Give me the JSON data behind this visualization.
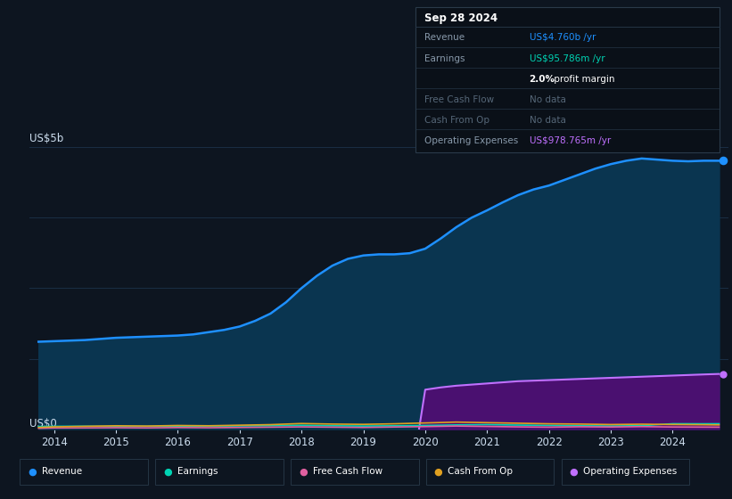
{
  "bg_color": "#0d1520",
  "plot_bg_color": "#0d1520",
  "grid_color": "#1a2e45",
  "tooltip_bg": "#0a1018",
  "tooltip_border": "#2a3a4a",
  "title_box": {
    "date": "Sep 28 2024",
    "rows": [
      {
        "label": "Revenue",
        "value": "US$4.760b /yr",
        "value_color": "#1e90ff",
        "label_color": "#8899aa"
      },
      {
        "label": "Earnings",
        "value": "US$95.786m /yr",
        "value_color": "#00d4b4",
        "label_color": "#8899aa"
      },
      {
        "label": "",
        "value_bold": "2.0%",
        "value_rest": " profit margin",
        "value_color": "#ffffff",
        "label_color": "#8899aa"
      },
      {
        "label": "Free Cash Flow",
        "value": "No data",
        "value_color": "#556677",
        "label_color": "#556677"
      },
      {
        "label": "Cash From Op",
        "value": "No data",
        "value_color": "#556677",
        "label_color": "#556677"
      },
      {
        "label": "Operating Expenses",
        "value": "US$978.765m /yr",
        "value_color": "#c070ff",
        "label_color": "#8899aa"
      }
    ]
  },
  "ylabel_top": "US$5b",
  "ylabel_bottom": "US$0",
  "x_years": [
    2014,
    2015,
    2016,
    2017,
    2018,
    2019,
    2020,
    2021,
    2022,
    2023,
    2024
  ],
  "revenue_x": [
    2013.75,
    2014.0,
    2014.25,
    2014.5,
    2014.75,
    2015.0,
    2015.25,
    2015.5,
    2015.75,
    2016.0,
    2016.25,
    2016.5,
    2016.75,
    2017.0,
    2017.25,
    2017.5,
    2017.75,
    2018.0,
    2018.25,
    2018.5,
    2018.75,
    2019.0,
    2019.25,
    2019.5,
    2019.75,
    2020.0,
    2020.25,
    2020.5,
    2020.75,
    2021.0,
    2021.25,
    2021.5,
    2021.75,
    2022.0,
    2022.25,
    2022.5,
    2022.75,
    2023.0,
    2023.25,
    2023.5,
    2023.75,
    2024.0,
    2024.25,
    2024.5,
    2024.75
  ],
  "revenue_y": [
    1.55,
    1.56,
    1.57,
    1.58,
    1.6,
    1.62,
    1.63,
    1.64,
    1.65,
    1.66,
    1.68,
    1.72,
    1.76,
    1.82,
    1.92,
    2.05,
    2.25,
    2.5,
    2.72,
    2.9,
    3.02,
    3.08,
    3.1,
    3.1,
    3.12,
    3.2,
    3.38,
    3.58,
    3.75,
    3.88,
    4.02,
    4.15,
    4.25,
    4.32,
    4.42,
    4.52,
    4.62,
    4.7,
    4.76,
    4.8,
    4.78,
    4.76,
    4.75,
    4.76,
    4.76
  ],
  "revenue_color": "#1e90ff",
  "revenue_fill": "#0a3550",
  "opex_x": [
    2019.9,
    2020.0,
    2020.25,
    2020.5,
    2020.75,
    2021.0,
    2021.25,
    2021.5,
    2021.75,
    2022.0,
    2022.25,
    2022.5,
    2022.75,
    2023.0,
    2023.25,
    2023.5,
    2023.75,
    2024.0,
    2024.25,
    2024.5,
    2024.75
  ],
  "opex_y": [
    0.0,
    0.7,
    0.74,
    0.77,
    0.79,
    0.81,
    0.83,
    0.85,
    0.86,
    0.87,
    0.88,
    0.89,
    0.9,
    0.91,
    0.92,
    0.93,
    0.94,
    0.95,
    0.96,
    0.97,
    0.979
  ],
  "opex_color": "#c070ff",
  "opex_fill": "#4a1070",
  "earnings_x": [
    2013.75,
    2014.0,
    2014.5,
    2015.0,
    2015.5,
    2016.0,
    2016.5,
    2017.0,
    2017.5,
    2018.0,
    2018.5,
    2019.0,
    2019.5,
    2020.0,
    2020.5,
    2021.0,
    2021.5,
    2022.0,
    2022.5,
    2023.0,
    2023.5,
    2024.0,
    2024.5,
    2024.75
  ],
  "earnings_y": [
    0.045,
    0.05,
    0.052,
    0.048,
    0.05,
    0.052,
    0.055,
    0.058,
    0.062,
    0.068,
    0.06,
    0.055,
    0.06,
    0.065,
    0.075,
    0.08,
    0.072,
    0.065,
    0.06,
    0.055,
    0.062,
    0.096,
    0.095,
    0.096
  ],
  "earnings_color": "#00d4b4",
  "fcf_x": [
    2013.75,
    2014.0,
    2014.5,
    2015.0,
    2015.5,
    2016.0,
    2016.5,
    2017.0,
    2017.5,
    2018.0,
    2018.5,
    2019.0,
    2019.5,
    2020.0,
    2020.5,
    2021.0,
    2021.5,
    2022.0,
    2022.5,
    2023.0,
    2023.5,
    2024.0,
    2024.5,
    2024.75
  ],
  "fcf_y": [
    0.015,
    0.02,
    0.022,
    0.025,
    0.022,
    0.028,
    0.025,
    0.03,
    0.035,
    0.04,
    0.035,
    0.03,
    0.038,
    0.045,
    0.055,
    0.048,
    0.04,
    0.035,
    0.042,
    0.038,
    0.045,
    0.038,
    0.036,
    0.035
  ],
  "fcf_color": "#e060a0",
  "cfop_x": [
    2013.75,
    2014.0,
    2014.5,
    2015.0,
    2015.5,
    2016.0,
    2016.5,
    2017.0,
    2017.5,
    2018.0,
    2018.5,
    2019.0,
    2019.5,
    2020.0,
    2020.5,
    2021.0,
    2021.5,
    2022.0,
    2022.5,
    2023.0,
    2023.5,
    2024.0,
    2024.5,
    2024.75
  ],
  "cfop_y": [
    0.03,
    0.04,
    0.05,
    0.06,
    0.055,
    0.065,
    0.06,
    0.07,
    0.08,
    0.1,
    0.09,
    0.085,
    0.095,
    0.11,
    0.125,
    0.115,
    0.105,
    0.095,
    0.09,
    0.082,
    0.088,
    0.082,
    0.078,
    0.075
  ],
  "cfop_color": "#e0a020",
  "legend": [
    {
      "label": "Revenue",
      "color": "#1e90ff"
    },
    {
      "label": "Earnings",
      "color": "#00d4b4"
    },
    {
      "label": "Free Cash Flow",
      "color": "#e060a0"
    },
    {
      "label": "Cash From Op",
      "color": "#e0a020"
    },
    {
      "label": "Operating Expenses",
      "color": "#c070ff"
    }
  ],
  "xlim": [
    2013.6,
    2024.9
  ],
  "ylim": [
    0,
    5.0
  ],
  "grid_yticks": [
    0,
    1.25,
    2.5,
    3.75,
    5.0
  ]
}
